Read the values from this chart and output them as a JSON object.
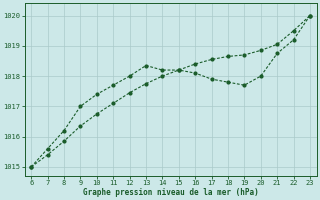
{
  "x_ticks": [
    6,
    7,
    8,
    9,
    10,
    11,
    12,
    13,
    14,
    15,
    16,
    17,
    18,
    19,
    20,
    21,
    22,
    23
  ],
  "series1_x": [
    6,
    7,
    8,
    9,
    10,
    11,
    12,
    13,
    14,
    15,
    16,
    17,
    18,
    19,
    20,
    21,
    22,
    23
  ],
  "series1_y": [
    1015.0,
    1015.6,
    1016.2,
    1017.0,
    1017.4,
    1017.7,
    1018.0,
    1018.35,
    1018.2,
    1018.2,
    1018.1,
    1017.9,
    1017.8,
    1017.7,
    1018.0,
    1018.75,
    1019.2,
    1020.0
  ],
  "series2_x": [
    6,
    7,
    8,
    9,
    10,
    11,
    12,
    13,
    14,
    15,
    16,
    17,
    18,
    19,
    20,
    21,
    22,
    23
  ],
  "series2_y": [
    1015.0,
    1015.4,
    1015.85,
    1016.35,
    1016.75,
    1017.1,
    1017.45,
    1017.75,
    1018.0,
    1018.2,
    1018.4,
    1018.55,
    1018.65,
    1018.7,
    1018.85,
    1019.05,
    1019.5,
    1020.0
  ],
  "line_color": "#1a5c2a",
  "bg_color": "#cce8e8",
  "grid_color": "#aacaca",
  "xlabel": "Graphe pression niveau de la mer (hPa)",
  "ylim": [
    1014.7,
    1020.4
  ],
  "xlim": [
    5.6,
    23.4
  ],
  "yticks": [
    1015,
    1016,
    1017,
    1018,
    1019,
    1020
  ]
}
